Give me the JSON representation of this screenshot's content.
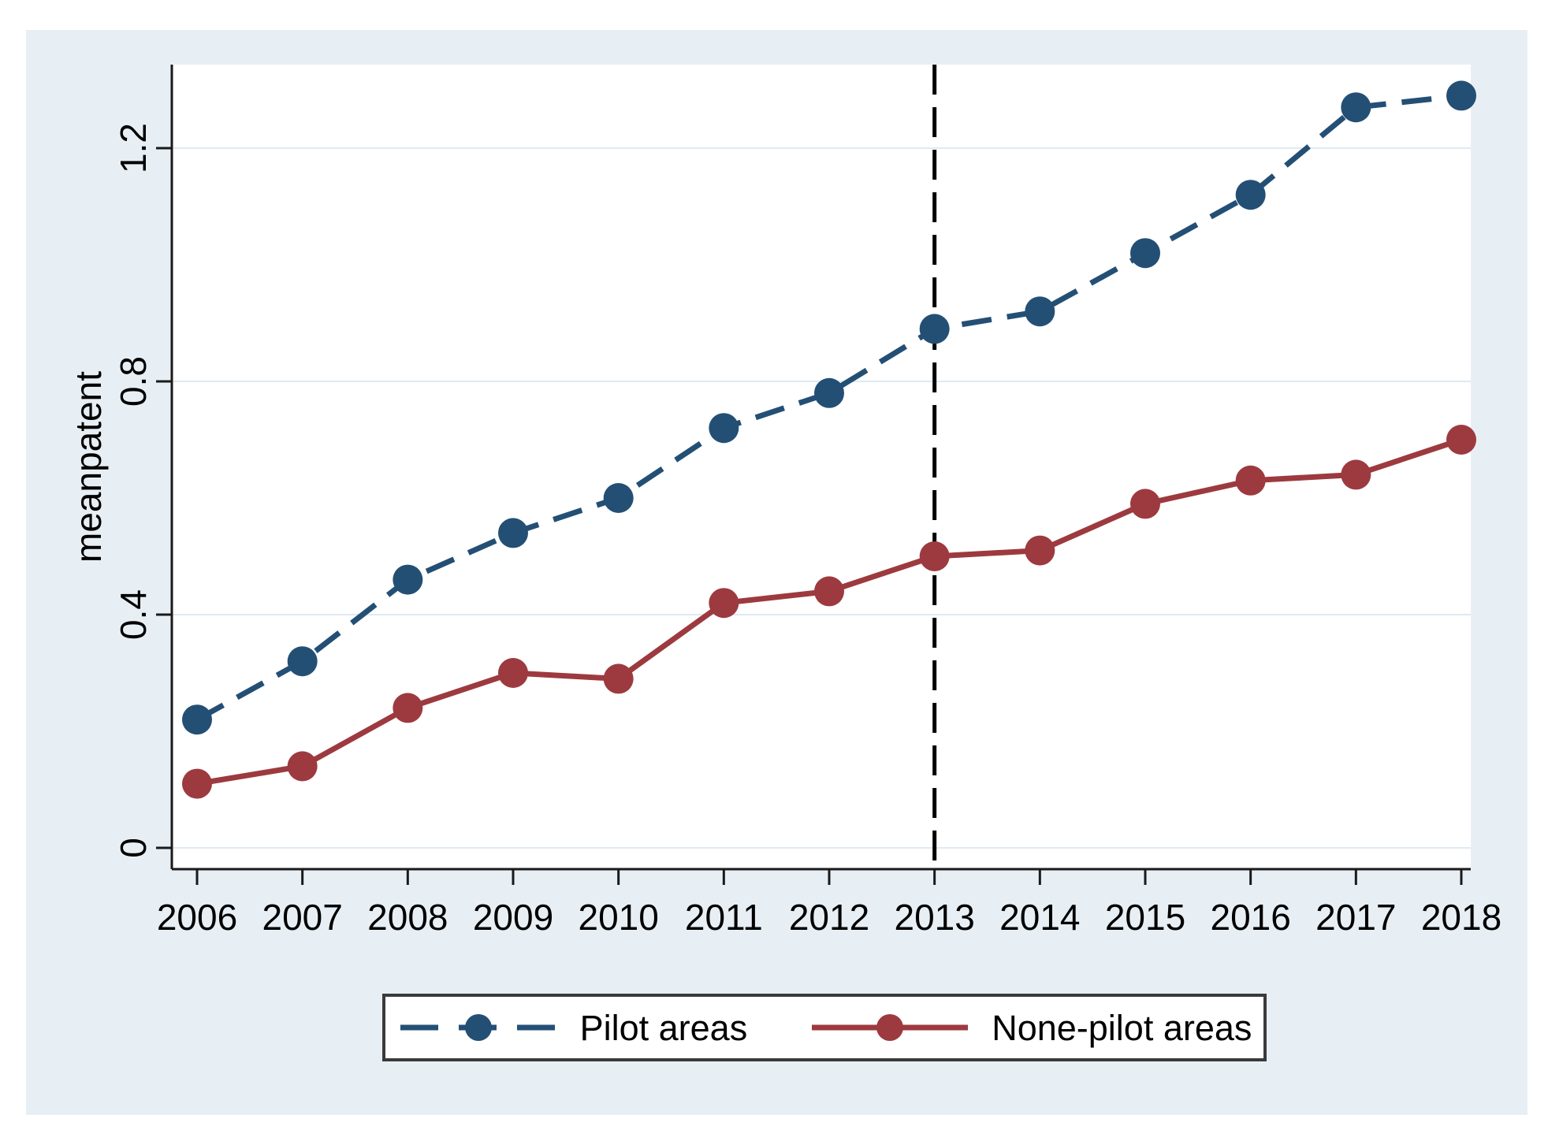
{
  "figure": {
    "background_color": "#e8eff4",
    "plot_background_color": "#ffffff",
    "axis_color": "#1a1a1a",
    "gridline_color": "#dfeaf2",
    "text_color": "#000000"
  },
  "chart_data": {
    "type": "line",
    "title": "",
    "xlabel": "",
    "ylabel": "meanpatent",
    "x": [
      2006,
      2007,
      2008,
      2009,
      2010,
      2011,
      2012,
      2013,
      2014,
      2015,
      2016,
      2017,
      2018
    ],
    "x_tick_labels": [
      "2006",
      "2007",
      "2008",
      "2009",
      "2010",
      "2011",
      "2012",
      "2013",
      "2014",
      "2015",
      "2016",
      "2017",
      "2018"
    ],
    "y_ticks": [
      0,
      0.4,
      0.8,
      1.2
    ],
    "y_tick_labels": [
      "0",
      "0.4",
      "0.8",
      "1.2"
    ],
    "xlim": [
      2005.76,
      2018.09
    ],
    "ylim": [
      -0.037,
      1.343
    ],
    "grid": true,
    "legend_position": "bottom-center",
    "reference_line": {
      "axis": "x",
      "value": 2013,
      "style": "long-dash",
      "color": "#000000"
    },
    "series": [
      {
        "name": "Pilot areas",
        "color": "#244f75",
        "line_style": "dashed",
        "marker": "circle",
        "values": [
          0.22,
          0.32,
          0.46,
          0.54,
          0.6,
          0.72,
          0.78,
          0.89,
          0.92,
          1.02,
          1.12,
          1.27,
          1.29
        ]
      },
      {
        "name": "None-pilot areas",
        "color": "#9d3a3f",
        "line_style": "solid",
        "marker": "circle",
        "values": [
          0.11,
          0.14,
          0.24,
          0.3,
          0.29,
          0.42,
          0.44,
          0.5,
          0.51,
          0.59,
          0.63,
          0.64,
          0.7
        ]
      }
    ]
  },
  "legend": {
    "items": [
      {
        "label": "Pilot areas"
      },
      {
        "label": "None-pilot areas"
      }
    ]
  }
}
